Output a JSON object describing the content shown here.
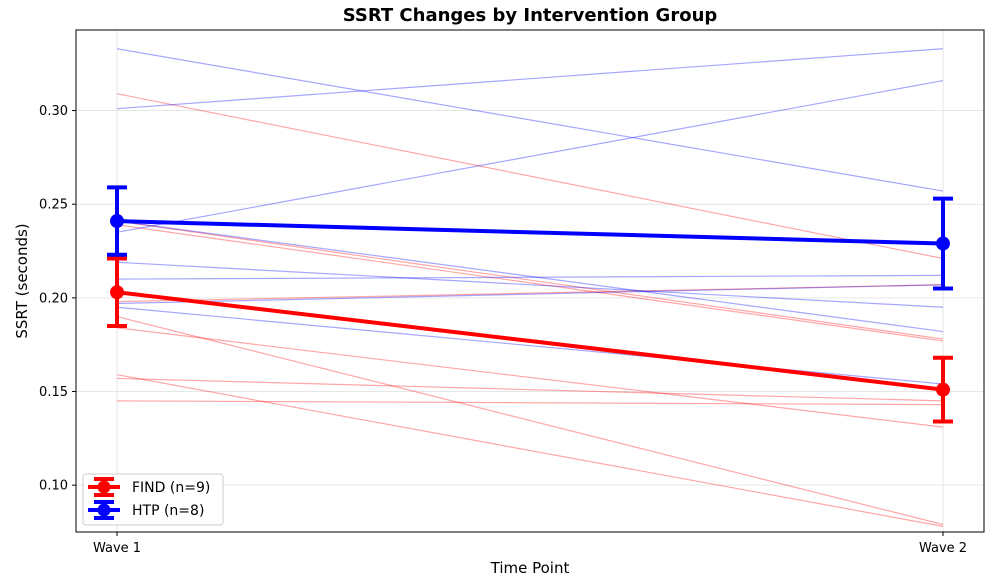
{
  "chart_data": {
    "type": "line",
    "title": "SSRT Changes by Intervention Group",
    "xlabel": "Time Point",
    "ylabel": "SSRT (seconds)",
    "categories": [
      "Wave 1",
      "Wave 2"
    ],
    "ylim": [
      0.075,
      0.343
    ],
    "yticks": [
      "0.10",
      "0.15",
      "0.20",
      "0.25",
      "0.30"
    ],
    "grid": true,
    "legend_position": "bottom-left",
    "series": [
      {
        "name": "FIND (n=9)",
        "color": "#ff0000",
        "mean": [
          0.203,
          0.151
        ],
        "error": [
          0.018,
          0.017
        ],
        "individuals": [
          [
            0.309,
            0.221
          ],
          [
            0.239,
            0.177
          ],
          [
            0.241,
            0.178
          ],
          [
            0.198,
            0.207
          ],
          [
            0.19,
            0.079
          ],
          [
            0.184,
            0.131
          ],
          [
            0.159,
            0.078
          ],
          [
            0.157,
            0.145
          ],
          [
            0.145,
            0.143
          ]
        ]
      },
      {
        "name": "HTP (n=8)",
        "color": "#0000ff",
        "mean": [
          0.241,
          0.229
        ],
        "error": [
          0.018,
          0.024
        ],
        "individuals": [
          [
            0.333,
            0.257
          ],
          [
            0.301,
            0.333
          ],
          [
            0.235,
            0.316
          ],
          [
            0.241,
            0.182
          ],
          [
            0.219,
            0.195
          ],
          [
            0.21,
            0.212
          ],
          [
            0.197,
            0.207
          ],
          [
            0.195,
            0.154
          ]
        ]
      }
    ]
  }
}
